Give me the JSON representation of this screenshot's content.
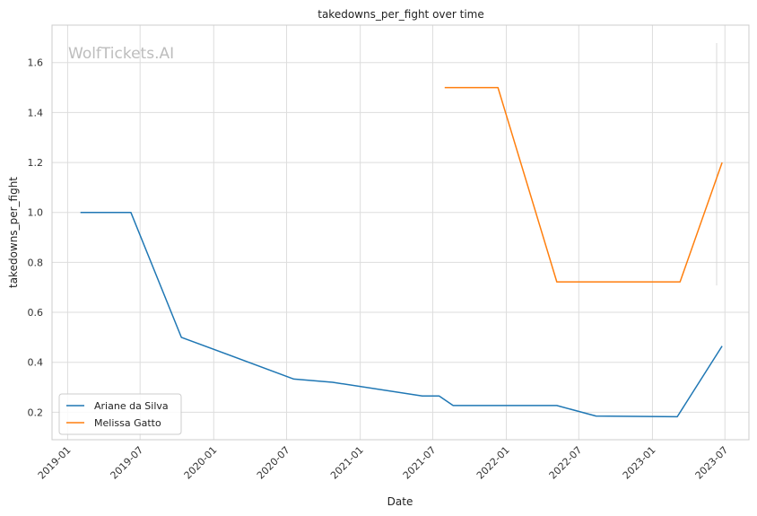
{
  "chart_data": {
    "type": "line",
    "title": "takedowns_per_fight over time",
    "xlabel": "Date",
    "ylabel": "takedowns_per_fight",
    "watermark": "WolfTickets.AI",
    "x_ticks": [
      "2019-01",
      "2019-07",
      "2020-01",
      "2020-07",
      "2021-01",
      "2021-07",
      "2022-01",
      "2022-07",
      "2023-01",
      "2023-07"
    ],
    "y_ticks": [
      "0.2",
      "0.4",
      "0.6",
      "0.8",
      "1.0",
      "1.2",
      "1.4",
      "1.6"
    ],
    "xlim": [
      "2018-11-23",
      "2023-08-30"
    ],
    "ylim": [
      0.09,
      1.75
    ],
    "grid": true,
    "legend_position": "lower-left",
    "series": [
      {
        "name": "Ariane da Silva",
        "color": "#1f77b4",
        "points": [
          {
            "x": "2019-02-02",
            "y": 1.0
          },
          {
            "x": "2019-06-08",
            "y": 1.0
          },
          {
            "x": "2019-10-12",
            "y": 0.5
          },
          {
            "x": "2020-07-19",
            "y": 0.333
          },
          {
            "x": "2020-10-24",
            "y": 0.32
          },
          {
            "x": "2021-06-05",
            "y": 0.265
          },
          {
            "x": "2021-07-17",
            "y": 0.265
          },
          {
            "x": "2021-08-21",
            "y": 0.227
          },
          {
            "x": "2022-05-07",
            "y": 0.227
          },
          {
            "x": "2022-08-13",
            "y": 0.185
          },
          {
            "x": "2023-03-04",
            "y": 0.182
          },
          {
            "x": "2023-06-24",
            "y": 0.465
          }
        ]
      },
      {
        "name": "Melissa Gatto",
        "color": "#ff7f0e",
        "points": [
          {
            "x": "2021-07-31",
            "y": 1.5
          },
          {
            "x": "2021-12-11",
            "y": 1.5
          },
          {
            "x": "2022-05-07",
            "y": 0.722
          },
          {
            "x": "2023-03-11",
            "y": 0.722
          },
          {
            "x": "2023-06-24",
            "y": 1.2
          }
        ]
      }
    ]
  }
}
